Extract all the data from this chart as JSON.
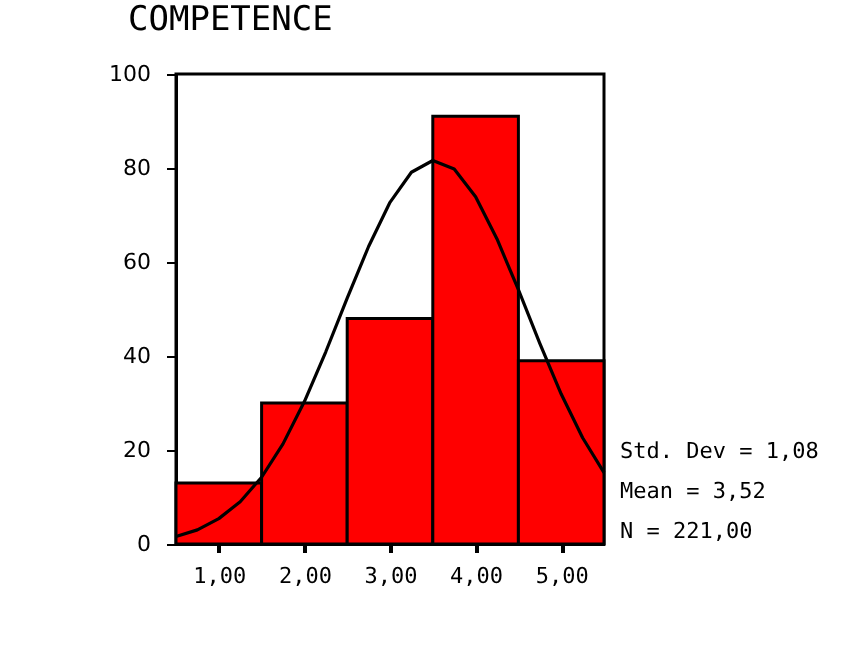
{
  "chart_data": {
    "type": "histogram",
    "title": "COMPETENCE",
    "bins": [
      0.5,
      1.5,
      2.5,
      3.5,
      4.5,
      5.5
    ],
    "series": [
      {
        "color": "#ff0000",
        "values": [
          13,
          30,
          48,
          91,
          39
        ]
      },
      {
        "type": "line",
        "color": "#000000",
        "x": [
          0.5,
          0.75,
          1,
          1.25,
          1.5,
          1.75,
          2,
          2.25,
          2.5,
          2.75,
          3,
          3.25,
          3.5,
          3.75,
          4,
          4.25,
          4.5,
          4.75,
          5,
          5.25,
          5.5
        ],
        "values": [
          1.6,
          3,
          5.4,
          9,
          14.2,
          21.3,
          30.3,
          40.9,
          52.3,
          63.3,
          72.7,
          79.1,
          81.6,
          79.8,
          73.9,
          64.9,
          54.1,
          42.7,
          31.9,
          22.6,
          15.2
        ]
      }
    ],
    "xlim": [
      0.5,
      5.5
    ],
    "xticks": [
      {
        "value": 1,
        "label": "1,00"
      },
      {
        "value": 2,
        "label": "2,00"
      },
      {
        "value": 3,
        "label": "3,00"
      },
      {
        "value": 4,
        "label": "4,00"
      },
      {
        "value": 5,
        "label": "5,00"
      }
    ],
    "ylim": [
      0,
      100
    ],
    "yticks": [
      0,
      20,
      40,
      60,
      80,
      100
    ],
    "annotations": [
      "Std. Dev = 1,08",
      "Mean = 3,52",
      "N = 221,00"
    ],
    "grid": false,
    "marker": "none"
  }
}
